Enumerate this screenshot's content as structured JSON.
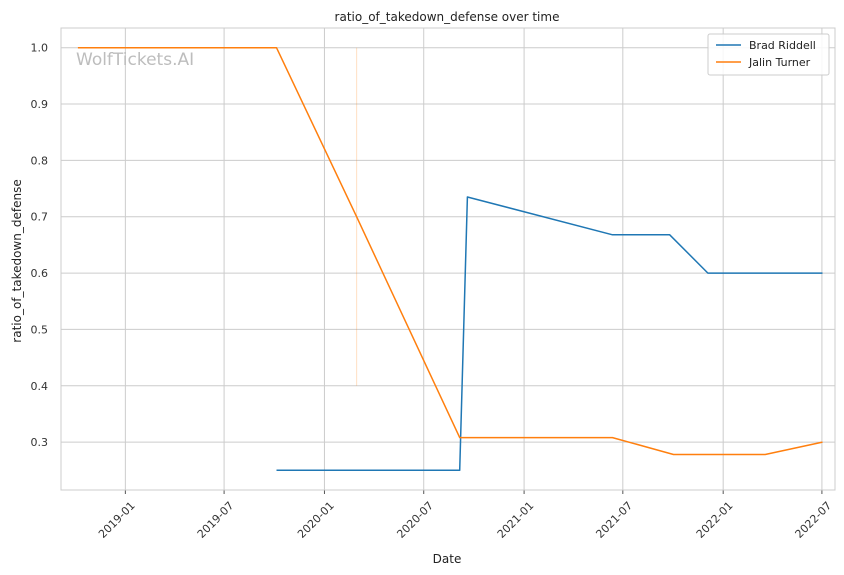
{
  "chart_data": {
    "type": "line",
    "title": "ratio_of_takedown_defense over time",
    "xlabel": "Date",
    "ylabel": "ratio_of_takedown_defense",
    "watermark": "WolfTickets.AI",
    "x_range": [
      "2018-09-05",
      "2022-07-25"
    ],
    "ylim": [
      0.215,
      1.035
    ],
    "x_ticks": [
      "2019-01",
      "2019-07",
      "2020-01",
      "2020-07",
      "2021-01",
      "2021-07",
      "2022-01",
      "2022-07"
    ],
    "y_ticks": [
      "0.3",
      "0.4",
      "0.5",
      "0.6",
      "0.7",
      "0.8",
      "0.9",
      "1.0"
    ],
    "grid": true,
    "legend_position": "top-right",
    "series": [
      {
        "name": "Brad Riddell",
        "color": "#1f77b4",
        "points": [
          {
            "x": "2019-10-05",
            "y": 0.25
          },
          {
            "x": "2020-09-05",
            "y": 0.25
          },
          {
            "x": "2020-09-19",
            "y": 0.735
          },
          {
            "x": "2021-06-12",
            "y": 0.668
          },
          {
            "x": "2021-09-25",
            "y": 0.668
          },
          {
            "x": "2021-12-04",
            "y": 0.6
          },
          {
            "x": "2022-07-02",
            "y": 0.6
          }
        ]
      },
      {
        "name": "Jalin Turner",
        "color": "#ff7f0e",
        "points": [
          {
            "x": "2018-10-06",
            "y": 1.0
          },
          {
            "x": "2019-10-05",
            "y": 1.0
          },
          {
            "x": "2020-02-29",
            "y": 0.7
          },
          {
            "x": "2020-09-05",
            "y": 0.308
          },
          {
            "x": "2021-06-12",
            "y": 0.308
          },
          {
            "x": "2021-10-02",
            "y": 0.278
          },
          {
            "x": "2022-03-19",
            "y": 0.278
          },
          {
            "x": "2022-07-02",
            "y": 0.3
          }
        ]
      }
    ],
    "annotation_line": {
      "x": "2020-02-29",
      "y_from": 0.4,
      "y_to": 1.0,
      "color": "#ff7f0e"
    }
  }
}
